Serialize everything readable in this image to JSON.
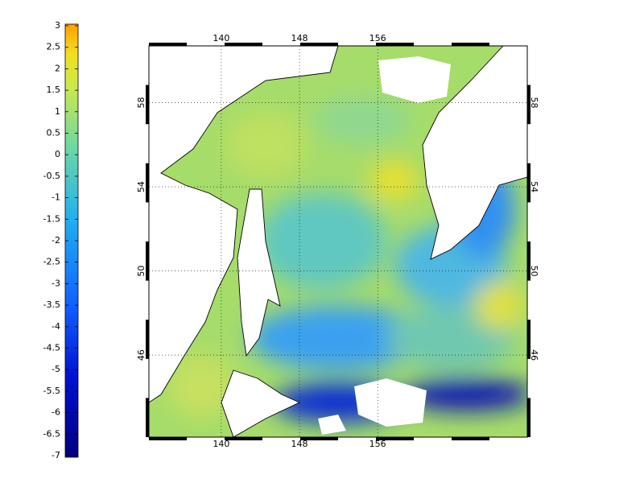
{
  "colorbar": {
    "lim": [
      -7,
      3
    ],
    "ticks": [
      3,
      2.5,
      2,
      1.5,
      1,
      0.5,
      0,
      -0.5,
      -1,
      -1.5,
      -2,
      -2.5,
      -3,
      -3.5,
      -4,
      -4.5,
      -5,
      -5.5,
      -6,
      -6.5,
      -7
    ]
  },
  "map": {
    "lon_lim": [
      132.6,
      171.3
    ],
    "lat_lim": [
      42.1,
      60.7
    ],
    "lon_ticks": [
      140,
      148,
      156
    ],
    "lat_ticks": [
      58,
      54,
      50,
      46
    ]
  }
}
